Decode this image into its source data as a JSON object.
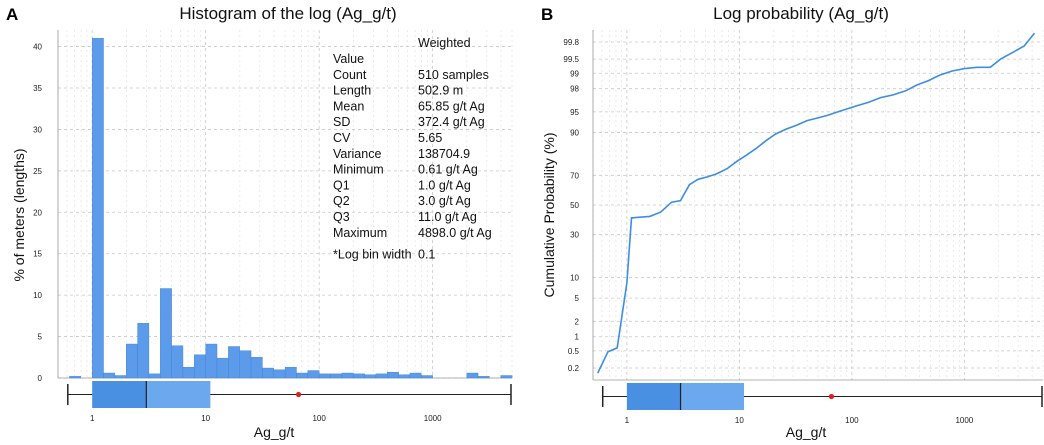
{
  "colors": {
    "bar": "#5b9bea",
    "bar_stroke": "#3f7fd3",
    "line": "#3e8ee0",
    "box_low": "#4a90e2",
    "box_high": "#6ca8ee",
    "mean_dot": "#e02020"
  },
  "chart_data": [
    {
      "panel": "A",
      "type": "bar",
      "title": "Histogram of the log (Ag_g/t)",
      "xlabel": "Ag_g/t",
      "ylabel": "% of meters (lengths)",
      "xscale": "log",
      "xlim": [
        0.5,
        5000
      ],
      "ylim": [
        0,
        42
      ],
      "x_tick_labels": [
        "1",
        "10",
        "100",
        "1000"
      ],
      "y_ticks": [
        0,
        5,
        10,
        15,
        20,
        25,
        30,
        35,
        40
      ],
      "y_tick_labels": [
        "0",
        "5",
        "10",
        "15",
        "20",
        "25",
        "30",
        "35",
        "40"
      ],
      "log_bin_width": 0.1,
      "bins": [
        {
          "x0": 0.631,
          "x1": 0.794,
          "value": 0.2
        },
        {
          "x0": 0.794,
          "x1": 1.0,
          "value": 0.0
        },
        {
          "x0": 1.0,
          "x1": 1.259,
          "value": 41.0
        },
        {
          "x0": 1.259,
          "x1": 1.585,
          "value": 0.6
        },
        {
          "x0": 1.585,
          "x1": 1.995,
          "value": 0.3
        },
        {
          "x0": 1.995,
          "x1": 2.512,
          "value": 4.1
        },
        {
          "x0": 2.512,
          "x1": 3.162,
          "value": 6.6
        },
        {
          "x0": 3.162,
          "x1": 3.981,
          "value": 0.5
        },
        {
          "x0": 3.981,
          "x1": 5.012,
          "value": 10.8
        },
        {
          "x0": 5.012,
          "x1": 6.31,
          "value": 3.9
        },
        {
          "x0": 6.31,
          "x1": 7.943,
          "value": 1.3
        },
        {
          "x0": 7.943,
          "x1": 10.0,
          "value": 2.8
        },
        {
          "x0": 10.0,
          "x1": 12.589,
          "value": 4.1
        },
        {
          "x0": 12.589,
          "x1": 15.849,
          "value": 2.4
        },
        {
          "x0": 15.849,
          "x1": 19.953,
          "value": 3.8
        },
        {
          "x0": 19.953,
          "x1": 25.119,
          "value": 3.3
        },
        {
          "x0": 25.119,
          "x1": 31.623,
          "value": 2.5
        },
        {
          "x0": 31.623,
          "x1": 39.811,
          "value": 1.2
        },
        {
          "x0": 39.811,
          "x1": 50.119,
          "value": 1.0
        },
        {
          "x0": 50.119,
          "x1": 63.096,
          "value": 1.3
        },
        {
          "x0": 63.096,
          "x1": 79.433,
          "value": 0.6
        },
        {
          "x0": 79.433,
          "x1": 100.0,
          "value": 0.9
        },
        {
          "x0": 100.0,
          "x1": 125.893,
          "value": 0.5
        },
        {
          "x0": 125.893,
          "x1": 158.489,
          "value": 0.5
        },
        {
          "x0": 158.489,
          "x1": 199.526,
          "value": 0.6
        },
        {
          "x0": 199.526,
          "x1": 251.189,
          "value": 0.5
        },
        {
          "x0": 251.189,
          "x1": 316.228,
          "value": 0.4
        },
        {
          "x0": 316.228,
          "x1": 398.107,
          "value": 0.5
        },
        {
          "x0": 398.107,
          "x1": 501.187,
          "value": 0.7
        },
        {
          "x0": 501.187,
          "x1": 630.957,
          "value": 0.4
        },
        {
          "x0": 630.957,
          "x1": 794.328,
          "value": 0.6
        },
        {
          "x0": 794.328,
          "x1": 1000.0,
          "value": 0.3
        },
        {
          "x0": 1995.262,
          "x1": 2511.886,
          "value": 0.6
        },
        {
          "x0": 2511.886,
          "x1": 3162.278,
          "value": 0.2
        },
        {
          "x0": 3981.072,
          "x1": 5011.872,
          "value": 0.3
        }
      ],
      "boxplot": {
        "min": 0.61,
        "q1": 1.0,
        "median": 3.0,
        "q3": 11.0,
        "max": 4898.0,
        "mean": 65.85
      },
      "stats": {
        "header": "Weighted",
        "rows": [
          {
            "label": "Value",
            "value": ""
          },
          {
            "label": "Count",
            "value": "510 samples"
          },
          {
            "label": "Length",
            "value": "502.9 m"
          },
          {
            "label": "Mean",
            "value": "65.85 g/t Ag"
          },
          {
            "label": "SD",
            "value": "372.4 g/t Ag"
          },
          {
            "label": "CV",
            "value": "5.65"
          },
          {
            "label": "Variance",
            "value": "138704.9"
          },
          {
            "label": "Minimum",
            "value": "0.61 g/t Ag"
          },
          {
            "label": "Q1",
            "value": "1.0 g/t Ag"
          },
          {
            "label": "Q2",
            "value": "3.0 g/t Ag"
          },
          {
            "label": "Q3",
            "value": "11.0 g/t Ag"
          },
          {
            "label": "Maximum",
            "value": "4898.0 g/t Ag"
          },
          {
            "label": "*Log bin width",
            "value": "0.1"
          }
        ]
      }
    },
    {
      "panel": "B",
      "type": "line",
      "title": "Log probability (Ag_g/t)",
      "xlabel": "Ag_g/t",
      "ylabel": "Cumulative Probability (%)",
      "xscale": "log",
      "yscale": "probability",
      "xlim": [
        0.5,
        5000
      ],
      "ylim": [
        0.1,
        99.9
      ],
      "x_tick_labels": [
        "1",
        "10",
        "100",
        "1000"
      ],
      "y_ticks": [
        0.2,
        0.5,
        1,
        2,
        5,
        10,
        30,
        50,
        70,
        90,
        95,
        98,
        99,
        99.5,
        99.8
      ],
      "y_tick_labels": [
        "0.2",
        "0.5",
        "1",
        "2",
        "5",
        "10",
        "30",
        "50",
        "70",
        "90",
        "95",
        "98",
        "99",
        "99.5",
        "99.8"
      ],
      "series": [
        {
          "x": [
            0.55,
            0.68,
            0.82,
            1.0,
            1.1,
            1.6,
            2.0,
            2.5,
            3.0,
            3.6,
            4.3,
            5.2,
            6.3,
            7.8,
            9.5,
            11.5,
            14,
            17,
            21,
            26,
            32,
            40,
            50,
            60,
            75,
            90,
            110,
            140,
            180,
            230,
            300,
            380,
            480,
            600,
            780,
            1000,
            1300,
            1700,
            2100,
            2700,
            3400,
            4200
          ],
          "y": [
            0.15,
            0.48,
            0.58,
            8.5,
            41,
            42,
            45,
            52,
            53,
            64,
            67.5,
            69,
            71,
            74,
            78,
            81,
            84,
            87,
            89.5,
            91,
            92,
            93.2,
            93.8,
            94.3,
            95,
            95.5,
            96,
            96.5,
            97.1,
            97.4,
            97.8,
            98.3,
            98.6,
            98.9,
            99.1,
            99.2,
            99.25,
            99.25,
            99.5,
            99.65,
            99.75,
            99.88
          ]
        }
      ],
      "boxplot": {
        "min": 0.61,
        "q1": 1.0,
        "median": 3.0,
        "q3": 11.0,
        "max": 4898.0,
        "mean": 65.85
      }
    }
  ]
}
